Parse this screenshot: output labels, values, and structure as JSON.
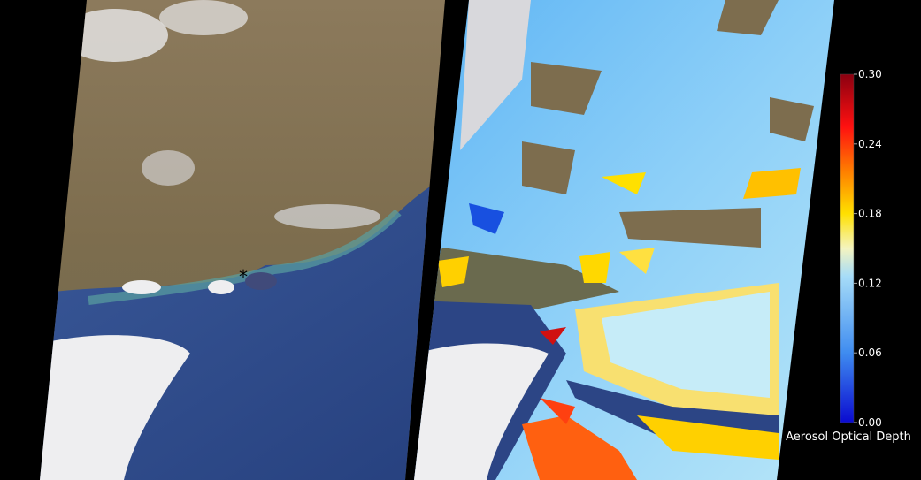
{
  "panels": [
    {
      "id": "true-color",
      "content": "true-color satellite image"
    },
    {
      "id": "aerosol-overlay",
      "content": "aerosol optical depth overlay"
    }
  ],
  "marker": {
    "symbol": "*"
  },
  "colorbar": {
    "title": "Aerosol Optical Depth",
    "min": 0.0,
    "max": 0.3,
    "ticks": [
      "0.30",
      "0.24",
      "0.18",
      "0.12",
      "0.06",
      "0.00"
    ],
    "colors": [
      "#0a0ad0",
      "#3f8cf0",
      "#a6dcf8",
      "#f4f4c0",
      "#ffe000",
      "#ff8000",
      "#ff1010",
      "#8a0010"
    ]
  }
}
